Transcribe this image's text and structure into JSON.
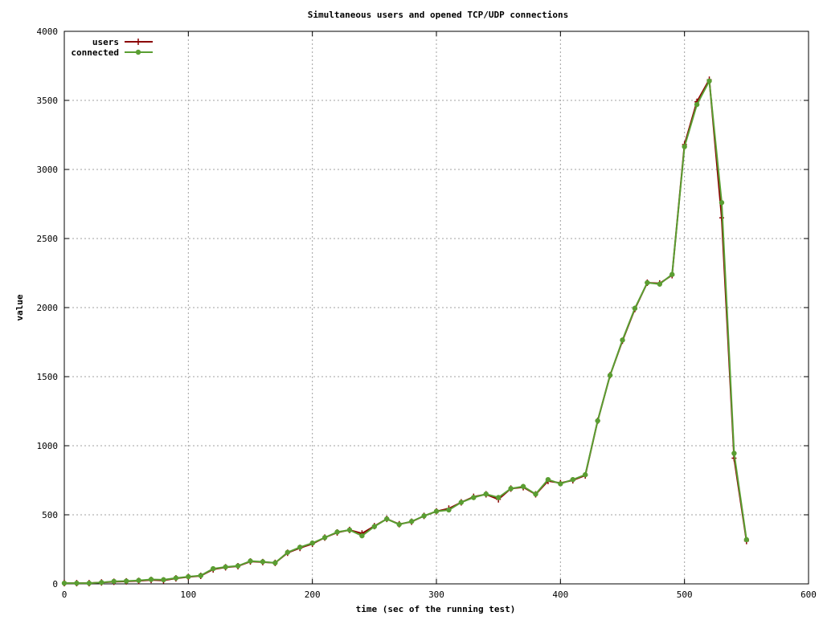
{
  "chart_data": {
    "type": "line",
    "title": "Simultaneous users and opened TCP/UDP connections",
    "xlabel": "time (sec of the running test)",
    "ylabel": "value",
    "xlim": [
      0,
      600
    ],
    "ylim": [
      0,
      4000
    ],
    "x_ticks": [
      "0",
      "100",
      "200",
      "300",
      "400",
      "500",
      "600"
    ],
    "y_ticks": [
      "0",
      "500",
      "1000",
      "1500",
      "2000",
      "2500",
      "3000",
      "3500",
      "4000"
    ],
    "grid": true,
    "legend_position": "top-left",
    "x": [
      0,
      10,
      20,
      30,
      40,
      50,
      60,
      70,
      80,
      90,
      100,
      110,
      120,
      130,
      140,
      150,
      160,
      170,
      180,
      190,
      200,
      210,
      220,
      230,
      240,
      250,
      260,
      270,
      280,
      290,
      300,
      310,
      320,
      330,
      340,
      350,
      360,
      370,
      380,
      390,
      400,
      410,
      420,
      430,
      440,
      450,
      460,
      470,
      480,
      490,
      500,
      510,
      520,
      530,
      540,
      550
    ],
    "series": [
      {
        "name": "users",
        "color": "#8b0000",
        "marker": "plus",
        "values": [
          5,
          5,
          5,
          10,
          15,
          18,
          22,
          28,
          25,
          40,
          50,
          58,
          105,
          120,
          128,
          162,
          158,
          152,
          225,
          260,
          290,
          335,
          372,
          390,
          365,
          418,
          470,
          432,
          450,
          492,
          525,
          545,
          590,
          630,
          648,
          612,
          690,
          700,
          648,
          745,
          730,
          750,
          785,
          1180,
          1510,
          1760,
          1990,
          2180,
          2175,
          2235,
          3180,
          3490,
          3650,
          2650,
          910,
          310
        ]
      },
      {
        "name": "connected",
        "color": "#5a9e32",
        "marker": "circle",
        "values": [
          5,
          5,
          5,
          10,
          18,
          20,
          25,
          32,
          30,
          42,
          52,
          60,
          110,
          122,
          130,
          165,
          160,
          152,
          228,
          265,
          295,
          335,
          375,
          390,
          348,
          415,
          470,
          430,
          452,
          492,
          525,
          535,
          590,
          625,
          650,
          625,
          690,
          705,
          650,
          755,
          725,
          755,
          790,
          1180,
          1510,
          1765,
          1995,
          2180,
          2170,
          2240,
          3165,
          3470,
          3640,
          2760,
          945,
          320
        ]
      }
    ]
  }
}
